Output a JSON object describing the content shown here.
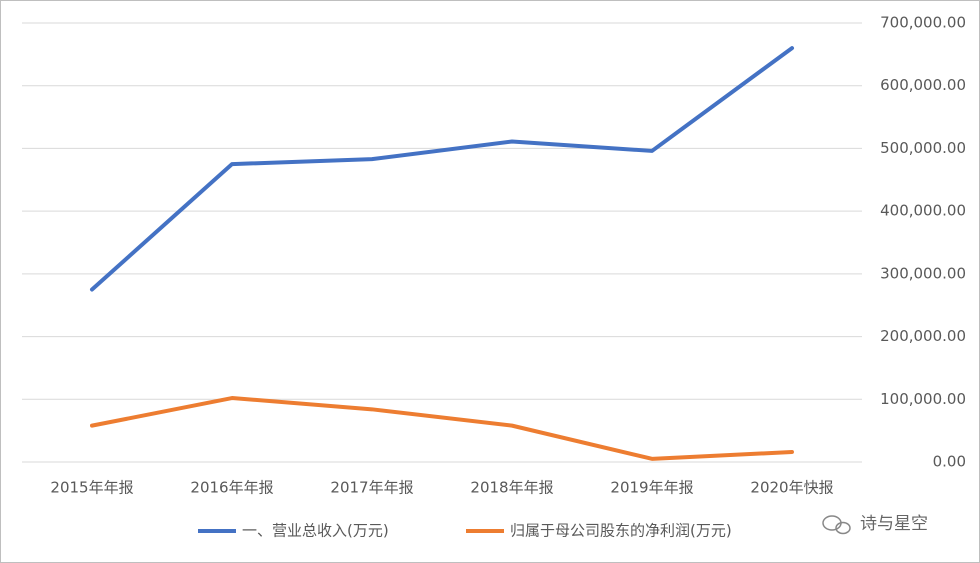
{
  "chart_data": {
    "type": "line",
    "categories": [
      "2015年年报",
      "2016年年报",
      "2017年年报",
      "2018年年报",
      "2019年年报",
      "2020年快报"
    ],
    "series": [
      {
        "name": "一、营业总收入(万元)",
        "color": "#4472c4",
        "values": [
          275000,
          475000,
          483000,
          511000,
          496000,
          660000
        ]
      },
      {
        "name": "归属于母公司股东的净利润(万元)",
        "color": "#ed7d31",
        "values": [
          58000,
          102000,
          84000,
          58000,
          5000,
          16000
        ]
      }
    ],
    "ylim": [
      0,
      700000
    ],
    "yticks": [
      {
        "value": 0,
        "label": "0.00"
      },
      {
        "value": 100000,
        "label": "100,000.00"
      },
      {
        "value": 200000,
        "label": "200,000.00"
      },
      {
        "value": 300000,
        "label": "300,000.00"
      },
      {
        "value": 400000,
        "label": "400,000.00"
      },
      {
        "value": 500000,
        "label": "500,000.00"
      },
      {
        "value": 600000,
        "label": "600,000.00"
      },
      {
        "value": 700000,
        "label": "700,000.00"
      }
    ],
    "grid": true,
    "legend": "bottom",
    "watermark": "诗与星空"
  }
}
